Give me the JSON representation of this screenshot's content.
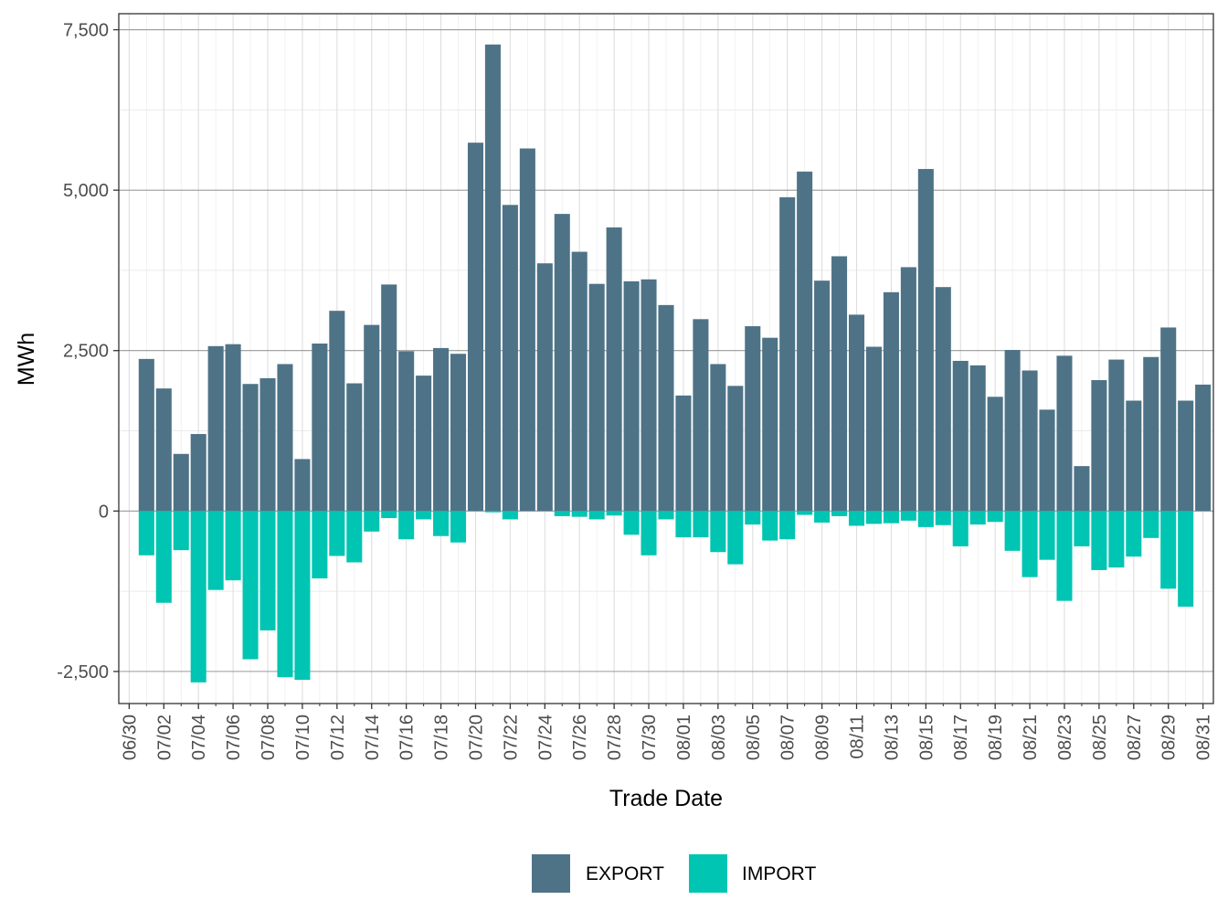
{
  "chart_data": {
    "type": "bar",
    "stacked": true,
    "xlabel": "Trade Date",
    "ylabel": "MWh",
    "ylim": [
      -3000,
      7750
    ],
    "y_ticks": [
      -2500,
      0,
      2500,
      5000,
      7500
    ],
    "y_tick_labels": [
      "-2,500",
      "0",
      "2,500",
      "5,000",
      "7,500"
    ],
    "grid": true,
    "legend_position": "bottom",
    "x_tick_labels": [
      "06/30",
      "07/02",
      "07/04",
      "07/06",
      "07/08",
      "07/10",
      "07/12",
      "07/14",
      "07/16",
      "07/18",
      "07/20",
      "07/22",
      "07/24",
      "07/26",
      "07/28",
      "07/30",
      "08/01",
      "08/03",
      "08/05",
      "08/07",
      "08/09",
      "08/11",
      "08/13",
      "08/15",
      "08/17",
      "08/19",
      "08/21",
      "08/23",
      "08/25",
      "08/27",
      "08/29",
      "08/31"
    ],
    "categories": [
      "06/30",
      "07/01",
      "07/02",
      "07/03",
      "07/04",
      "07/05",
      "07/06",
      "07/07",
      "07/08",
      "07/09",
      "07/10",
      "07/11",
      "07/12",
      "07/13",
      "07/14",
      "07/15",
      "07/16",
      "07/17",
      "07/18",
      "07/19",
      "07/20",
      "07/21",
      "07/22",
      "07/23",
      "07/24",
      "07/25",
      "07/26",
      "07/27",
      "07/28",
      "07/29",
      "07/30",
      "07/31",
      "08/01",
      "08/02",
      "08/03",
      "08/04",
      "08/05",
      "08/06",
      "08/07",
      "08/08",
      "08/09",
      "08/10",
      "08/11",
      "08/12",
      "08/13",
      "08/14",
      "08/15",
      "08/16",
      "08/17",
      "08/18",
      "08/19",
      "08/20",
      "08/21",
      "08/22",
      "08/23",
      "08/24",
      "08/25",
      "08/26",
      "08/27",
      "08/28",
      "08/29",
      "08/30",
      "08/31"
    ],
    "series": [
      {
        "name": "EXPORT",
        "color": "#4e7387",
        "values": [
          0,
          2370,
          1910,
          890,
          1200,
          2570,
          2600,
          1980,
          2070,
          2290,
          810,
          2610,
          3120,
          1990,
          2900,
          3530,
          2490,
          2110,
          2540,
          2450,
          5740,
          7270,
          4770,
          5650,
          3860,
          4630,
          4040,
          3540,
          4420,
          3580,
          3610,
          3210,
          1800,
          2990,
          2290,
          1950,
          2880,
          2700,
          4890,
          5290,
          3590,
          3970,
          3060,
          2560,
          3410,
          3800,
          5330,
          3490,
          2340,
          2270,
          1780,
          2510,
          2190,
          1580,
          2420,
          700,
          2040,
          2360,
          1720,
          2400,
          2860,
          1720,
          1970
        ]
      },
      {
        "name": "IMPORT",
        "color": "#00c5b2",
        "values": [
          0,
          -690,
          -1430,
          -610,
          -2670,
          -1230,
          -1080,
          -2310,
          -1860,
          -2590,
          -2630,
          -1050,
          -700,
          -800,
          -320,
          -110,
          -440,
          -130,
          -390,
          -490,
          0,
          -20,
          -130,
          0,
          0,
          -80,
          -90,
          -130,
          -70,
          -370,
          -690,
          -130,
          -410,
          -410,
          -640,
          -830,
          -210,
          -460,
          -440,
          -60,
          -180,
          -80,
          -230,
          -200,
          -190,
          -150,
          -250,
          -220,
          -550,
          -210,
          -170,
          -620,
          -1030,
          -760,
          -1400,
          -550,
          -920,
          -880,
          -710,
          -420,
          -1210,
          -1490,
          0
        ]
      }
    ]
  }
}
